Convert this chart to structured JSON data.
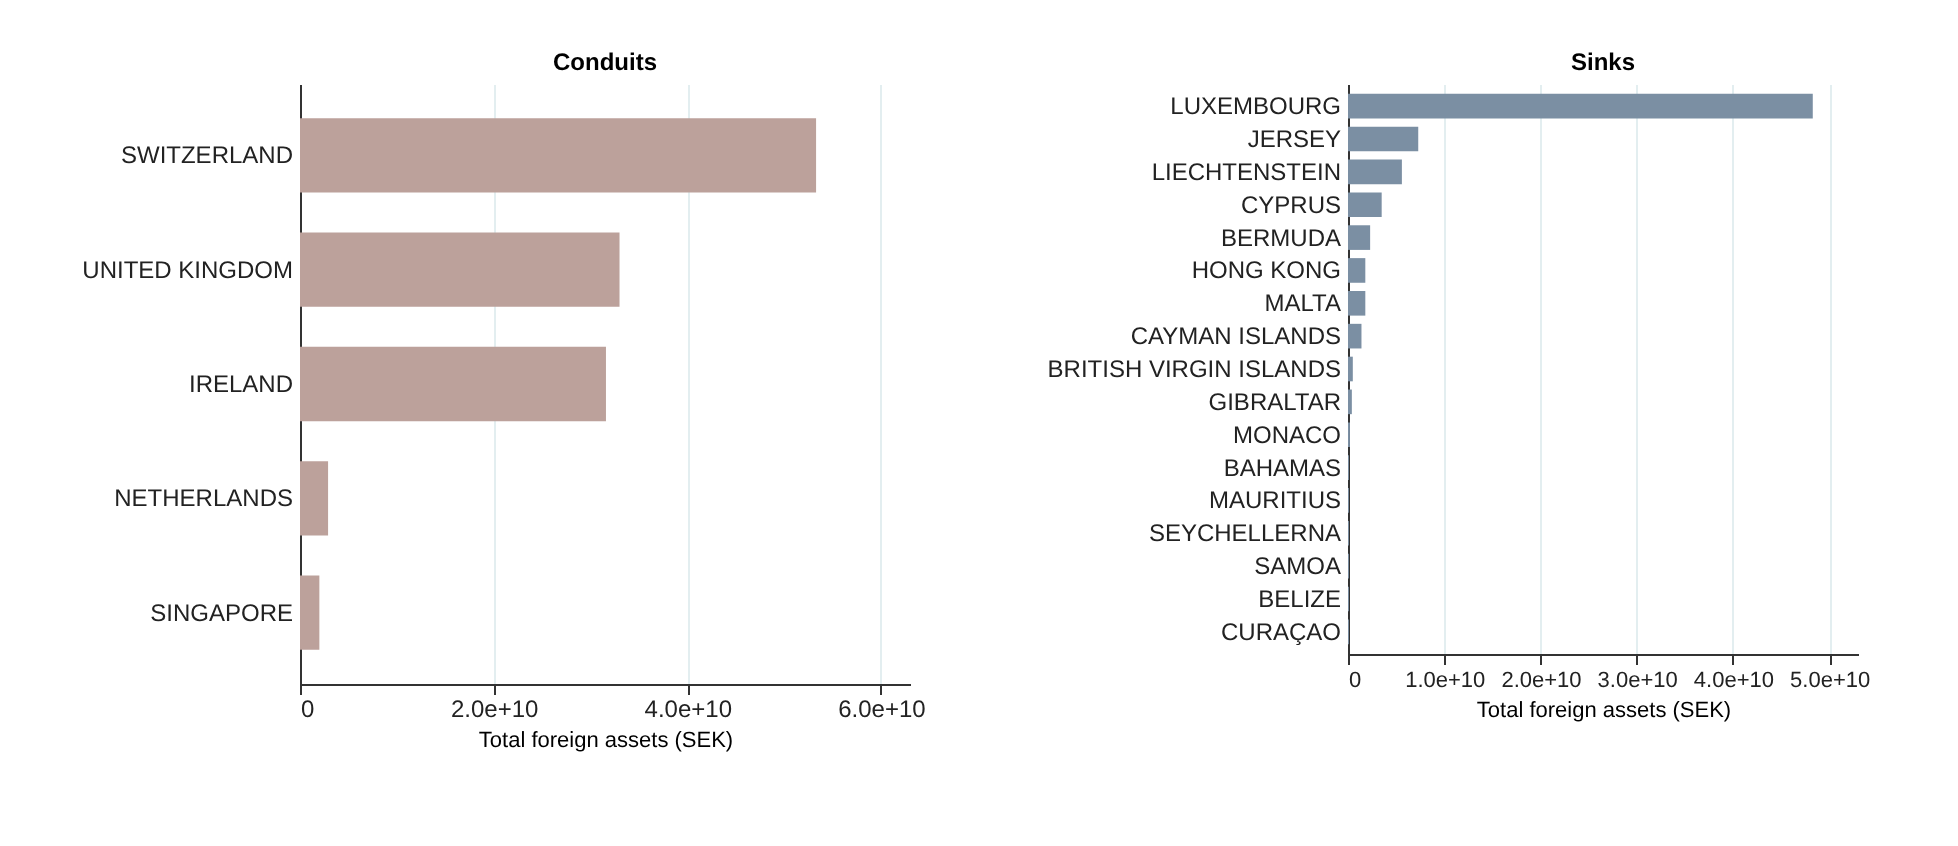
{
  "chart_data": [
    {
      "type": "bar",
      "orientation": "horizontal",
      "title": "Conduits",
      "xlabel": "Total foreign assets (SEK)",
      "categories": [
        "SWITZERLAND",
        "UNITED KINGDOM",
        "IRELAND",
        "NETHERLANDS",
        "SINGAPORE"
      ],
      "series": [
        {
          "color": "#bca19b",
          "values": [
            53300000000,
            33000000000,
            31600000000,
            2900000000,
            2000000000
          ]
        }
      ],
      "xlim": [
        0,
        63000000000
      ],
      "xticks": [
        0,
        {
          "value": 20000000000,
          "label": "2.0e+10"
        },
        {
          "value": 40000000000,
          "label": "4.0e+10"
        },
        {
          "value": 60000000000,
          "label": "6.0e+10"
        }
      ],
      "grid": "x"
    },
    {
      "type": "bar",
      "orientation": "horizontal",
      "title": "Sinks",
      "xlabel": "Total foreign assets (SEK)",
      "categories": [
        "LUXEMBOURG",
        "JERSEY",
        "LIECHTENSTEIN",
        "CYPRUS",
        "BERMUDA",
        "HONG KONG",
        "MALTA",
        "CAYMAN ISLANDS",
        "BRITISH VIRGIN ISLANDS",
        "GIBRALTAR",
        "MONACO",
        "BAHAMAS",
        "MAURITIUS",
        "SEYCHELLERNA",
        "SAMOA",
        "BELIZE",
        "CURAÇAO"
      ],
      "series": [
        {
          "color": "#7b8fa3",
          "values": [
            48300000000,
            7300000000,
            5600000000,
            3500000000,
            2300000000,
            1800000000,
            1800000000,
            1400000000,
            500000000,
            400000000,
            200000000,
            100000000,
            100000000,
            100000000,
            100000000,
            100000000,
            100000000
          ]
        }
      ],
      "xlim": [
        0,
        53000000000
      ],
      "xticks": [
        0,
        {
          "value": 10000000000,
          "label": "1.0e+10"
        },
        {
          "value": 20000000000,
          "label": "2.0e+10"
        },
        {
          "value": 30000000000,
          "label": "3.0e+10"
        },
        {
          "value": 40000000000,
          "label": "4.0e+10"
        },
        {
          "value": 50000000000,
          "label": "5.0e+10"
        }
      ],
      "grid": "x"
    }
  ]
}
